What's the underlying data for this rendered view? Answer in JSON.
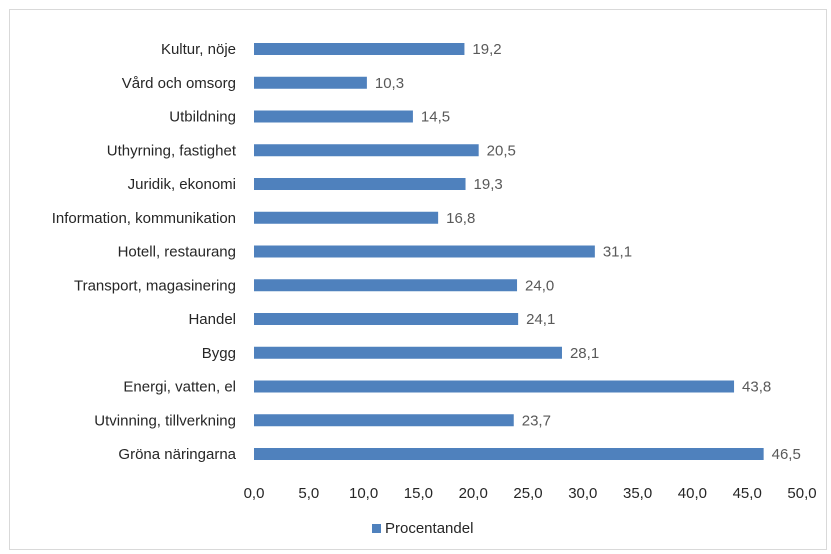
{
  "chart_data": {
    "type": "bar",
    "orientation": "horizontal",
    "categories": [
      "Kultur, nöje",
      "Vård och omsorg",
      "Utbildning",
      "Uthyrning, fastighet",
      "Juridik, ekonomi",
      "Information, kommunikation",
      "Hotell, restaurang",
      "Transport, magasinering",
      "Handel",
      "Bygg",
      "Energi, vatten, el",
      "Utvinning, tillverkning",
      "Gröna näringarna"
    ],
    "series": [
      {
        "name": "Procentandel",
        "values": [
          19.2,
          10.3,
          14.5,
          20.5,
          19.3,
          16.8,
          31.1,
          24.0,
          24.1,
          28.1,
          43.8,
          23.7,
          46.5
        ],
        "value_labels": [
          "19,2",
          "10,3",
          "14,5",
          "20,5",
          "19,3",
          "16,8",
          "31,1",
          "24,0",
          "24,1",
          "28,1",
          "43,8",
          "23,7",
          "46,5"
        ],
        "color": "#4f81bd"
      }
    ],
    "xlim": [
      0,
      50
    ],
    "x_ticks": [
      "0,0",
      "5,0",
      "10,0",
      "15,0",
      "20,0",
      "25,0",
      "30,0",
      "35,0",
      "40,0",
      "45,0",
      "50,0"
    ],
    "grid": false,
    "legend_position": "bottom"
  },
  "legend": {
    "label": "Procentandel"
  }
}
